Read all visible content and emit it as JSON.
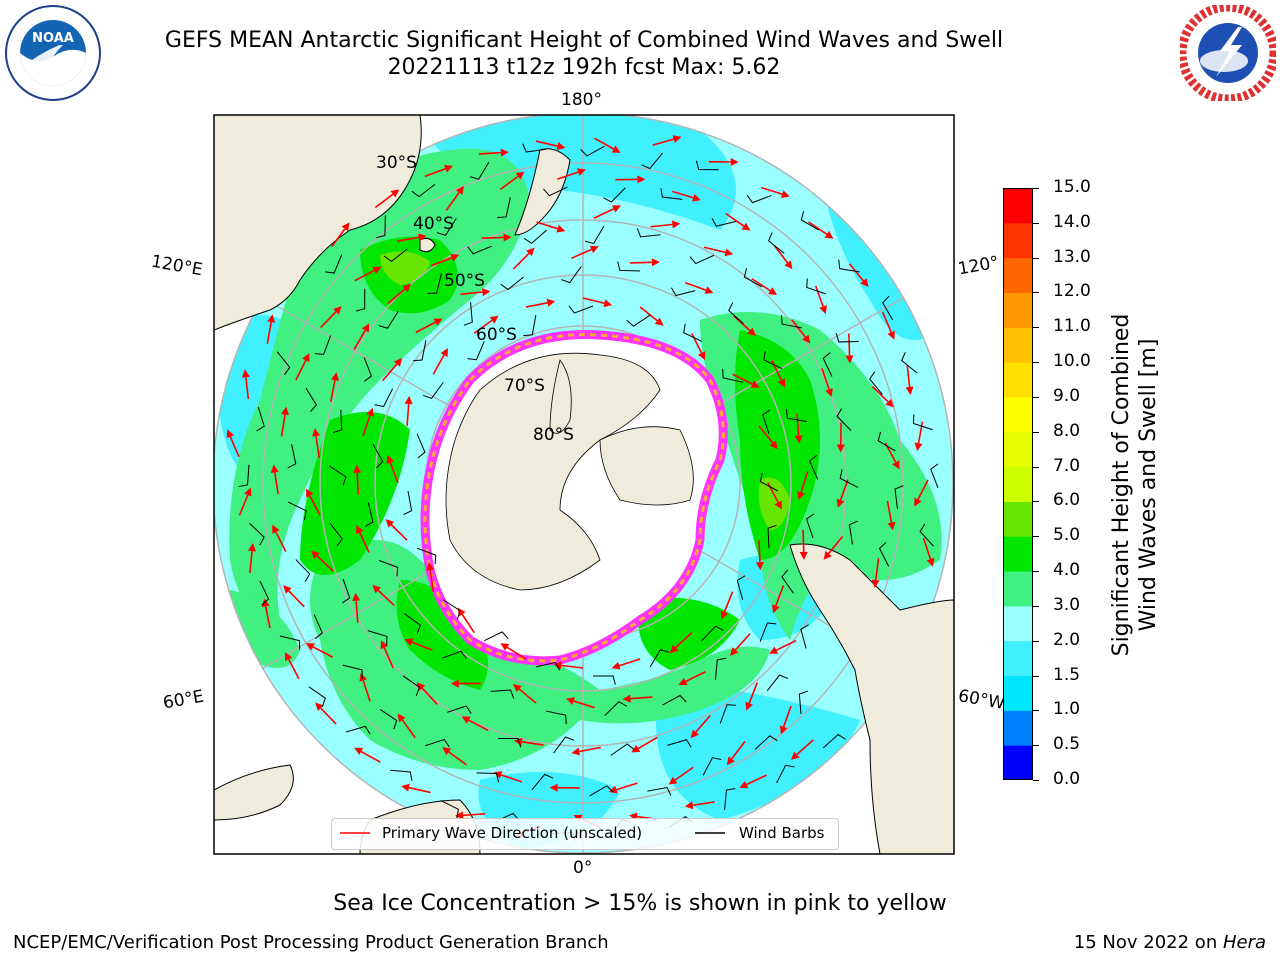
{
  "header": {
    "title_line1": "GEFS MEAN Antarctic Significant Height of Combined Wind Waves and Swell",
    "title_line2": "20221113 t12z 192h fcst   Max: 5.62"
  },
  "logos": {
    "left": {
      "name": "NOAA",
      "icon": "noaa-logo-icon"
    },
    "right": {
      "name": "NATIONAL WEATHER SERVICE",
      "icon": "nws-logo-icon"
    }
  },
  "map": {
    "projection": "south-polar-stereographic",
    "lon_labels": {
      "top": "180°",
      "bottom": "0°",
      "upper_left": "120°E",
      "lower_left": "60°E",
      "upper_right": "120°",
      "lower_right": "60°W"
    },
    "lat_labels": [
      "30°S",
      "40°S",
      "50°S",
      "60°S",
      "70°S",
      "80°S"
    ],
    "colors": {
      "land": "#efecdc",
      "ice_shelf": "#ffffff",
      "sea_ice_edge": "#ff33ff",
      "sea_ice_inner": "#ffaa33",
      "wave_arrow": "#ff0000",
      "wind_barb": "#000000",
      "graticule": "#b4b4b4"
    }
  },
  "legend": {
    "primary_wave_label": "Primary Wave Direction (unscaled)",
    "wind_barbs_label": "Wind Barbs"
  },
  "colorbar": {
    "title_line1": "Significant Height of Combined",
    "title_line2": "Wind Waves and Swell [m]",
    "ticks": [
      "0.0",
      "0.5",
      "1.0",
      "1.5",
      "2.0",
      "3.0",
      "4.0",
      "5.0",
      "6.0",
      "7.0",
      "8.0",
      "9.0",
      "10.0",
      "11.0",
      "12.0",
      "13.0",
      "14.0",
      "15.0"
    ],
    "colors": [
      "#0000ff",
      "#0080ff",
      "#00e6ff",
      "#40f0ff",
      "#99ffff",
      "#40f080",
      "#00e600",
      "#66e600",
      "#ccff00",
      "#e6ff00",
      "#ffff00",
      "#ffe000",
      "#ffc000",
      "#ff9900",
      "#ff6600",
      "#ff3300",
      "#ff0000"
    ]
  },
  "footer": {
    "sea_ice_note": "Sea Ice Concentration > 15% is shown in pink to yellow",
    "credit": "NCEP/EMC/Verification Post Processing Product Generation Branch",
    "date_prefix": "15 Nov 2022 on ",
    "machine": "Hera"
  }
}
